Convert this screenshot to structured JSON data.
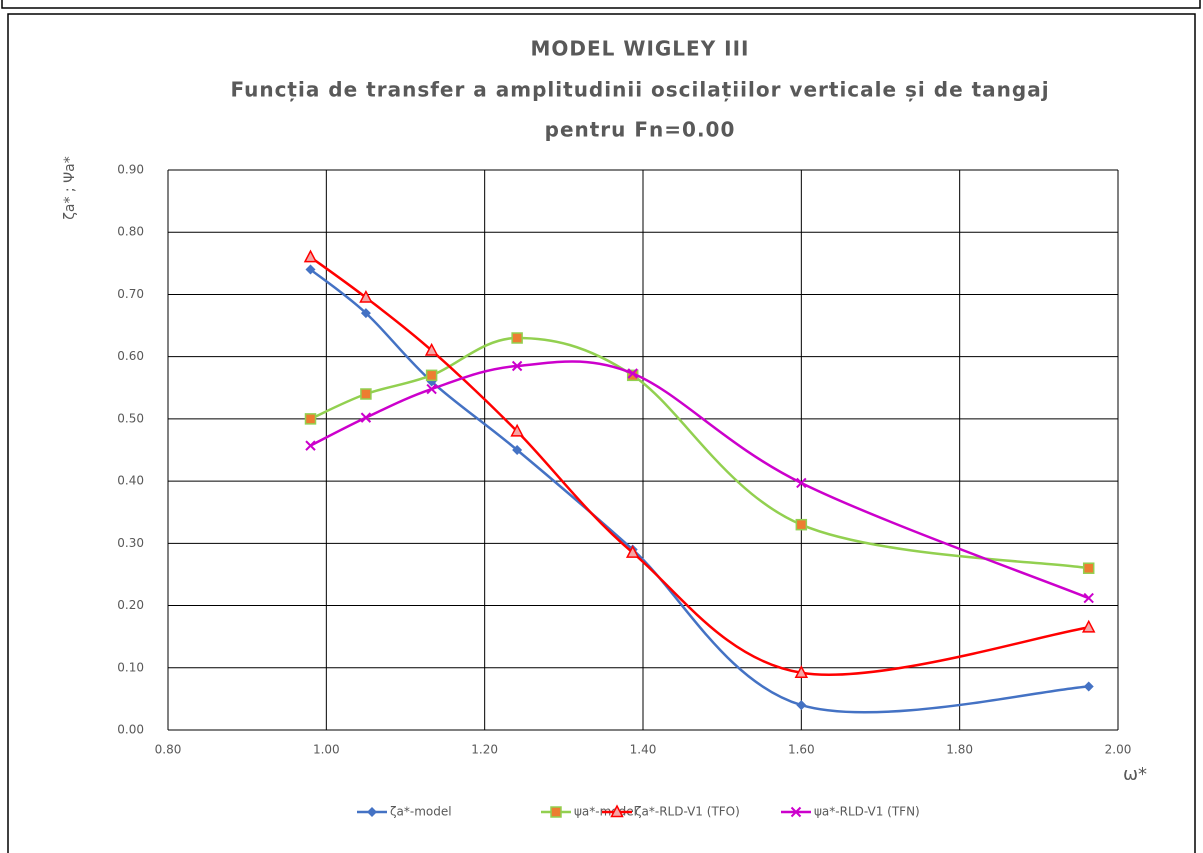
{
  "chart_data": {
    "type": "line",
    "title": [
      "MODEL WIGLEY III",
      "Funcția de transfer a amplitudinii oscilațiilor verticale și de tangaj",
      "pentru Fn=0.00"
    ],
    "y_label": "ζa* ; Ψa*",
    "x_label": "ω*",
    "x": [
      0.98,
      1.05,
      1.133,
      1.241,
      1.387,
      1.6,
      1.963
    ],
    "series": [
      {
        "name": "ζa*-model",
        "color": "#4472c4",
        "marker": "diamond",
        "values": [
          0.74,
          0.67,
          0.56,
          0.45,
          0.29,
          0.04,
          0.07
        ]
      },
      {
        "name": "ψa*-model",
        "color": "#92d050",
        "marker": "square",
        "values": [
          0.5,
          0.54,
          0.57,
          0.63,
          0.57,
          0.33,
          0.26
        ]
      },
      {
        "name": "ζa*-RLD-V1 (TFO)",
        "color": "#ff0000",
        "marker": "triangle",
        "values": [
          0.76,
          0.695,
          0.61,
          0.48,
          0.285,
          0.092,
          0.165
        ]
      },
      {
        "name": "ψa*-RLD-V1 (TFN)",
        "color": "#cc00cc",
        "marker": "x",
        "values": [
          0.457,
          0.502,
          0.548,
          0.585,
          0.573,
          0.397,
          0.212
        ]
      }
    ],
    "xlim": [
      0.8,
      2.0
    ],
    "xticks": [
      {
        "value": 0.8,
        "label": "0.80"
      },
      {
        "value": 1.0,
        "label": "1.00"
      },
      {
        "value": 1.2,
        "label": "1.20"
      },
      {
        "value": 1.4,
        "label": "1.40"
      },
      {
        "value": 1.6,
        "label": "1.60"
      },
      {
        "value": 1.8,
        "label": "1.80"
      },
      {
        "value": 2.0,
        "label": "2.00"
      }
    ],
    "ylim": [
      0,
      0.9
    ],
    "yticks": [
      {
        "value": 0,
        "label": "0.00"
      },
      {
        "value": 0.1,
        "label": "0.10"
      },
      {
        "value": 0.2,
        "label": "0.20"
      },
      {
        "value": 0.3,
        "label": "0.30"
      },
      {
        "value": 0.4,
        "label": "0.40"
      },
      {
        "value": 0.5,
        "label": "0.50"
      },
      {
        "value": 0.6,
        "label": "0.60"
      },
      {
        "value": 0.7,
        "label": "0.70"
      },
      {
        "value": 0.8,
        "label": "0.80"
      },
      {
        "value": 0.9,
        "label": "0.90"
      }
    ],
    "grid": true,
    "smooth": true,
    "legend": "bottom"
  }
}
